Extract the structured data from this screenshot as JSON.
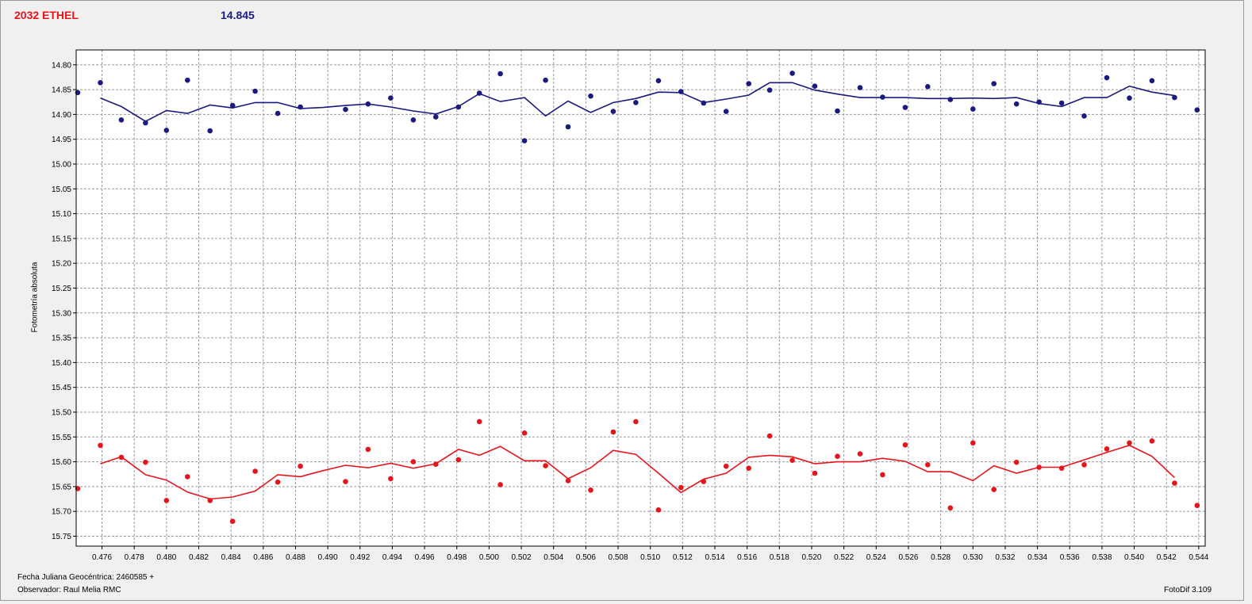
{
  "header": {
    "object_name": "2032 ETHEL",
    "magnitude": "14.845"
  },
  "footer": {
    "julian_date": "Fecha Juliana Geocéntrica: 2460585 +",
    "observer": "Observador: Raul Melia RMC",
    "software": "FotoDif 3.109"
  },
  "colors": {
    "blue": "#1a1a80",
    "red": "#e8141c",
    "grid": "#9a9a9a",
    "plot_bg": "#ffffff"
  },
  "chart_data": {
    "type": "scatter",
    "ylabel": "Fotometría absoluta",
    "xlabel": "",
    "xlim": [
      0.4744,
      0.5444
    ],
    "ylim": [
      14.77,
      15.77
    ],
    "y_inverted": true,
    "grid": true,
    "x_ticks": [
      "0.476",
      "0.478",
      "0.480",
      "0.482",
      "0.484",
      "0.486",
      "0.488",
      "0.490",
      "0.492",
      "0.494",
      "0.496",
      "0.498",
      "0.500",
      "0.502",
      "0.504",
      "0.506",
      "0.508",
      "0.510",
      "0.512",
      "0.514",
      "0.516",
      "0.518",
      "0.520",
      "0.522",
      "0.524",
      "0.526",
      "0.528",
      "0.530",
      "0.532",
      "0.534",
      "0.536",
      "0.538",
      "0.540",
      "0.542",
      "0.544"
    ],
    "y_ticks": [
      "14.80",
      "14.85",
      "14.90",
      "14.95",
      "15.00",
      "15.05",
      "15.10",
      "15.15",
      "15.20",
      "15.25",
      "15.30",
      "15.35",
      "15.40",
      "15.45",
      "15.50",
      "15.55",
      "15.60",
      "15.65",
      "15.70",
      "15.75"
    ],
    "series": [
      {
        "color": "#1a1a80",
        "points": [
          [
            0.4745,
            14.856
          ],
          [
            0.4759,
            14.836
          ],
          [
            0.4772,
            14.911
          ],
          [
            0.4787,
            14.917
          ],
          [
            0.48,
            14.932
          ],
          [
            0.4813,
            14.831
          ],
          [
            0.4827,
            14.933
          ],
          [
            0.4841,
            14.882
          ],
          [
            0.4855,
            14.853
          ],
          [
            0.4869,
            14.898
          ],
          [
            0.4883,
            14.885
          ],
          [
            0.4911,
            14.89
          ],
          [
            0.4925,
            14.879
          ],
          [
            0.4939,
            14.867
          ],
          [
            0.4953,
            14.911
          ],
          [
            0.4967,
            14.905
          ],
          [
            0.4981,
            14.885
          ],
          [
            0.4994,
            14.857
          ],
          [
            0.5007,
            14.818
          ],
          [
            0.5022,
            14.953
          ],
          [
            0.5035,
            14.831
          ],
          [
            0.5049,
            14.925
          ],
          [
            0.5063,
            14.863
          ],
          [
            0.5077,
            14.894
          ],
          [
            0.5091,
            14.876
          ],
          [
            0.5105,
            14.832
          ],
          [
            0.5119,
            14.854
          ],
          [
            0.5133,
            14.877
          ],
          [
            0.5147,
            14.894
          ],
          [
            0.5161,
            14.838
          ],
          [
            0.5174,
            14.851
          ],
          [
            0.5188,
            14.817
          ],
          [
            0.5202,
            14.843
          ],
          [
            0.5216,
            14.893
          ],
          [
            0.523,
            14.846
          ],
          [
            0.5244,
            14.865
          ],
          [
            0.5258,
            14.886
          ],
          [
            0.5272,
            14.844
          ],
          [
            0.5286,
            14.87
          ],
          [
            0.53,
            14.889
          ],
          [
            0.5313,
            14.838
          ],
          [
            0.5327,
            14.879
          ],
          [
            0.5341,
            14.875
          ],
          [
            0.5355,
            14.877
          ],
          [
            0.5369,
            14.903
          ],
          [
            0.5383,
            14.826
          ],
          [
            0.5397,
            14.867
          ],
          [
            0.5411,
            14.832
          ],
          [
            0.5425,
            14.866
          ],
          [
            0.5439,
            14.891
          ]
        ],
        "trend": [
          [
            0.4759,
            14.867
          ],
          [
            0.4772,
            14.884
          ],
          [
            0.4787,
            14.914
          ],
          [
            0.48,
            14.892
          ],
          [
            0.4813,
            14.898
          ],
          [
            0.4827,
            14.881
          ],
          [
            0.4841,
            14.887
          ],
          [
            0.4855,
            14.876
          ],
          [
            0.4869,
            14.876
          ],
          [
            0.4883,
            14.888
          ],
          [
            0.4897,
            14.886
          ],
          [
            0.4911,
            14.882
          ],
          [
            0.4925,
            14.879
          ],
          [
            0.4939,
            14.885
          ],
          [
            0.4953,
            14.893
          ],
          [
            0.4967,
            14.899
          ],
          [
            0.4981,
            14.884
          ],
          [
            0.4994,
            14.858
          ],
          [
            0.5007,
            14.874
          ],
          [
            0.5022,
            14.866
          ],
          [
            0.5035,
            14.903
          ],
          [
            0.5049,
            14.873
          ],
          [
            0.5063,
            14.896
          ],
          [
            0.5077,
            14.876
          ],
          [
            0.5091,
            14.868
          ],
          [
            0.5105,
            14.855
          ],
          [
            0.5119,
            14.856
          ],
          [
            0.5133,
            14.876
          ],
          [
            0.5147,
            14.869
          ],
          [
            0.5161,
            14.861
          ],
          [
            0.5174,
            14.836
          ],
          [
            0.5188,
            14.836
          ],
          [
            0.5202,
            14.851
          ],
          [
            0.5216,
            14.859
          ],
          [
            0.523,
            14.866
          ],
          [
            0.5244,
            14.866
          ],
          [
            0.5258,
            14.866
          ],
          [
            0.5272,
            14.868
          ],
          [
            0.5286,
            14.868
          ],
          [
            0.53,
            14.867
          ],
          [
            0.5313,
            14.868
          ],
          [
            0.5327,
            14.866
          ],
          [
            0.5341,
            14.878
          ],
          [
            0.5355,
            14.884
          ],
          [
            0.5369,
            14.866
          ],
          [
            0.5383,
            14.866
          ],
          [
            0.5397,
            14.843
          ],
          [
            0.5411,
            14.855
          ],
          [
            0.5425,
            14.862
          ]
        ]
      },
      {
        "color": "#e8141c",
        "points": [
          [
            0.4745,
            15.654
          ],
          [
            0.4759,
            15.567
          ],
          [
            0.4772,
            15.591
          ],
          [
            0.4787,
            15.601
          ],
          [
            0.48,
            15.678
          ],
          [
            0.4813,
            15.63
          ],
          [
            0.4827,
            15.678
          ],
          [
            0.4841,
            15.72
          ],
          [
            0.4855,
            15.619
          ],
          [
            0.4869,
            15.641
          ],
          [
            0.4883,
            15.609
          ],
          [
            0.4911,
            15.64
          ],
          [
            0.4925,
            15.575
          ],
          [
            0.4939,
            15.634
          ],
          [
            0.4953,
            15.6
          ],
          [
            0.4967,
            15.605
          ],
          [
            0.4981,
            15.596
          ],
          [
            0.4994,
            15.519
          ],
          [
            0.5007,
            15.646
          ],
          [
            0.5022,
            15.542
          ],
          [
            0.5035,
            15.608
          ],
          [
            0.5049,
            15.638
          ],
          [
            0.5063,
            15.657
          ],
          [
            0.5077,
            15.54
          ],
          [
            0.5091,
            15.519
          ],
          [
            0.5105,
            15.697
          ],
          [
            0.5119,
            15.652
          ],
          [
            0.5133,
            15.64
          ],
          [
            0.5147,
            15.609
          ],
          [
            0.5161,
            15.613
          ],
          [
            0.5174,
            15.548
          ],
          [
            0.5188,
            15.597
          ],
          [
            0.5202,
            15.623
          ],
          [
            0.5216,
            15.589
          ],
          [
            0.523,
            15.584
          ],
          [
            0.5244,
            15.626
          ],
          [
            0.5258,
            15.566
          ],
          [
            0.5272,
            15.606
          ],
          [
            0.5286,
            15.693
          ],
          [
            0.53,
            15.562
          ],
          [
            0.5313,
            15.656
          ],
          [
            0.5327,
            15.601
          ],
          [
            0.5341,
            15.611
          ],
          [
            0.5355,
            15.613
          ],
          [
            0.5369,
            15.606
          ],
          [
            0.5383,
            15.574
          ],
          [
            0.5397,
            15.562
          ],
          [
            0.5411,
            15.558
          ],
          [
            0.5425,
            15.643
          ],
          [
            0.5439,
            15.688
          ]
        ],
        "trend": [
          [
            0.4759,
            15.604
          ],
          [
            0.4772,
            15.59
          ],
          [
            0.4787,
            15.626
          ],
          [
            0.48,
            15.637
          ],
          [
            0.4813,
            15.661
          ],
          [
            0.4827,
            15.675
          ],
          [
            0.4841,
            15.671
          ],
          [
            0.4855,
            15.659
          ],
          [
            0.4869,
            15.626
          ],
          [
            0.4883,
            15.63
          ],
          [
            0.4897,
            15.618
          ],
          [
            0.4911,
            15.607
          ],
          [
            0.4925,
            15.612
          ],
          [
            0.4939,
            15.603
          ],
          [
            0.4953,
            15.613
          ],
          [
            0.4967,
            15.604
          ],
          [
            0.4981,
            15.575
          ],
          [
            0.4994,
            15.587
          ],
          [
            0.5007,
            15.569
          ],
          [
            0.5022,
            15.598
          ],
          [
            0.5035,
            15.598
          ],
          [
            0.5049,
            15.634
          ],
          [
            0.5063,
            15.612
          ],
          [
            0.5077,
            15.577
          ],
          [
            0.5091,
            15.585
          ],
          [
            0.5105,
            15.623
          ],
          [
            0.5119,
            15.662
          ],
          [
            0.5133,
            15.635
          ],
          [
            0.5147,
            15.623
          ],
          [
            0.5161,
            15.591
          ],
          [
            0.5174,
            15.587
          ],
          [
            0.5188,
            15.59
          ],
          [
            0.5202,
            15.604
          ],
          [
            0.5216,
            15.6
          ],
          [
            0.523,
            15.6
          ],
          [
            0.5244,
            15.593
          ],
          [
            0.5258,
            15.599
          ],
          [
            0.5272,
            15.62
          ],
          [
            0.5286,
            15.62
          ],
          [
            0.53,
            15.638
          ],
          [
            0.5313,
            15.608
          ],
          [
            0.5327,
            15.623
          ],
          [
            0.5341,
            15.611
          ],
          [
            0.5355,
            15.611
          ],
          [
            0.5369,
            15.596
          ],
          [
            0.5383,
            15.581
          ],
          [
            0.5397,
            15.567
          ],
          [
            0.5411,
            15.589
          ],
          [
            0.5425,
            15.632
          ]
        ]
      }
    ]
  }
}
